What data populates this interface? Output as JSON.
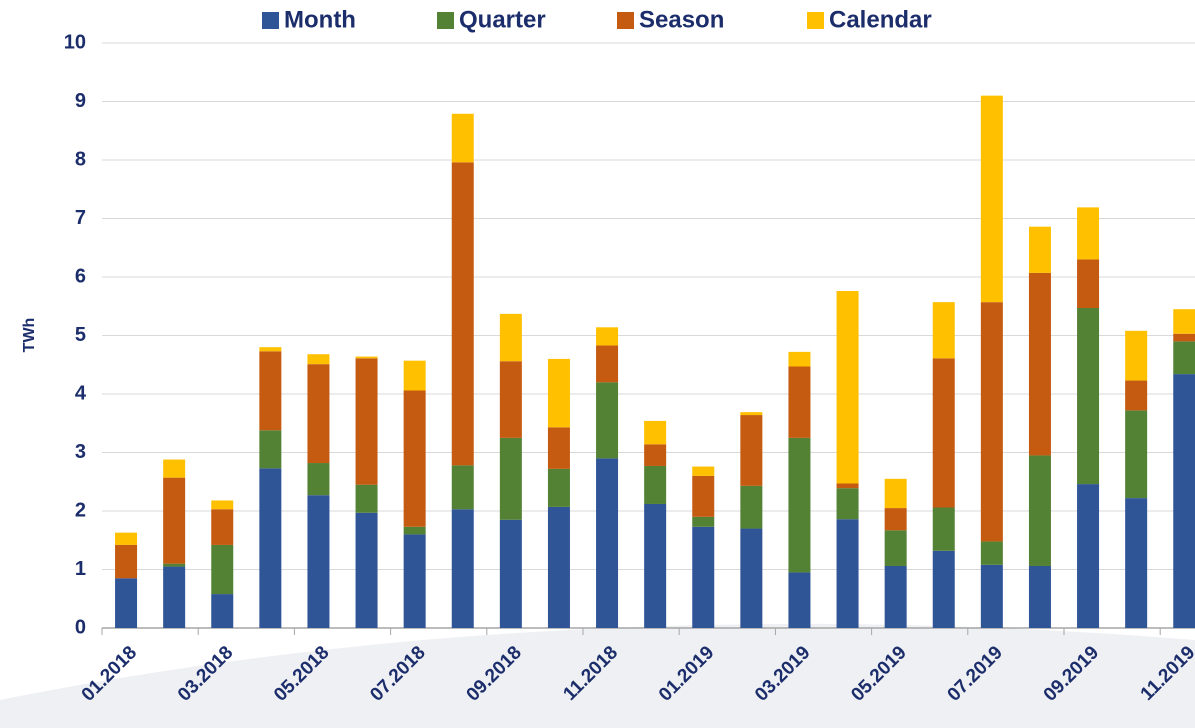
{
  "chart_data": {
    "type": "bar",
    "stacked": true,
    "y_label": "TWh",
    "categories": [
      "01.2018",
      null,
      "03.2018",
      null,
      "05.2018",
      null,
      "07.2018",
      null,
      "09.2018",
      null,
      "11.2018",
      null,
      "01.2019",
      null,
      "03.2019",
      null,
      "05.2019",
      null,
      "07.2019",
      null,
      "09.2019",
      null,
      "11.2019"
    ],
    "series": [
      {
        "name": "Month",
        "color": "#2f5597",
        "values": [
          0.85,
          1.05,
          0.58,
          2.73,
          2.27,
          1.97,
          1.6,
          2.03,
          1.85,
          2.07,
          2.9,
          2.12,
          1.73,
          1.7,
          0.95,
          1.86,
          1.06,
          1.32,
          1.08,
          1.06,
          2.46,
          2.22,
          4.34
        ]
      },
      {
        "name": "Quarter",
        "color": "#548235",
        "values": [
          0,
          0.05,
          0.84,
          0.65,
          0.55,
          0.48,
          0.13,
          0.75,
          1.4,
          0.65,
          1.3,
          0.65,
          0.17,
          0.73,
          2.3,
          0.53,
          0.61,
          0.74,
          0.4,
          1.89,
          3.01,
          1.5,
          0.56
        ]
      },
      {
        "name": "Season",
        "color": "#c55a11",
        "values": [
          0.57,
          1.47,
          0.61,
          1.35,
          1.69,
          2.16,
          2.33,
          5.18,
          1.31,
          0.71,
          0.63,
          0.37,
          0.7,
          1.21,
          1.22,
          0.08,
          0.38,
          2.55,
          4.09,
          3.12,
          0.83,
          0.51,
          0.13
        ]
      },
      {
        "name": "Calendar",
        "color": "#ffc000",
        "values": [
          0.21,
          0.31,
          0.15,
          0.07,
          0.17,
          0.03,
          0.51,
          0.83,
          0.81,
          1.17,
          0.31,
          0.4,
          0.16,
          0.05,
          0.25,
          3.29,
          0.5,
          0.96,
          3.53,
          0.79,
          0.89,
          0.85,
          0.42
        ]
      }
    ],
    "ylim": [
      0,
      10
    ],
    "yticks": [
      0,
      1,
      2,
      3,
      4,
      5,
      6,
      7,
      8,
      9,
      10
    ],
    "grid": true,
    "legend": "top"
  }
}
